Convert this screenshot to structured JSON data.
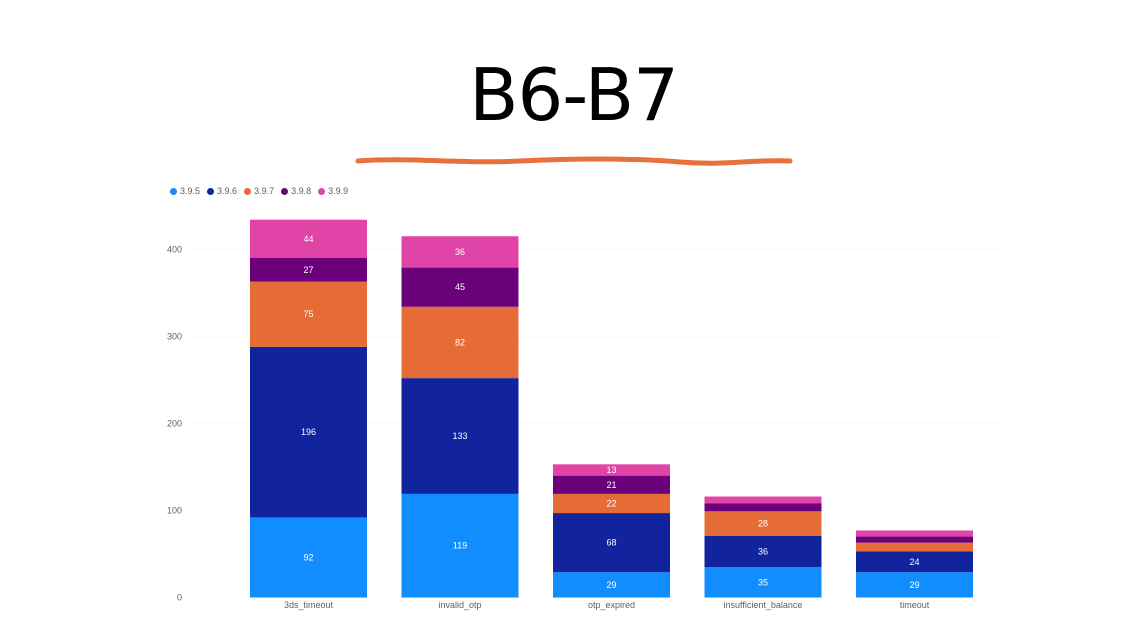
{
  "slide": {
    "title": "B6-B7"
  },
  "colors": {
    "underline": "#e8703a"
  },
  "chart_data": {
    "type": "bar",
    "stacked": true,
    "title": "",
    "xlabel": "",
    "ylabel": "",
    "categories": [
      "3ds_timeout",
      "invalid_otp",
      "otp_expired",
      "insufficient_balance",
      "timeout"
    ],
    "series": [
      {
        "name": "3.9.5",
        "color": "#118dff",
        "values": [
          92,
          119,
          29,
          35,
          29
        ]
      },
      {
        "name": "3.9.6",
        "color": "#12239e",
        "values": [
          196,
          133,
          68,
          36,
          24
        ]
      },
      {
        "name": "3.9.7",
        "color": "#e66c37",
        "values": [
          75,
          82,
          22,
          28,
          10
        ]
      },
      {
        "name": "3.9.8",
        "color": "#6b007b",
        "values": [
          27,
          45,
          21,
          9,
          7
        ]
      },
      {
        "name": "3.9.9",
        "color": "#e044a7",
        "values": [
          44,
          36,
          13,
          8,
          7
        ]
      }
    ],
    "data_labels": [
      [
        "92",
        "119",
        "29",
        "35",
        "29"
      ],
      [
        "196",
        "133",
        "68",
        "36",
        "24"
      ],
      [
        "75",
        "82",
        "22",
        "28",
        ""
      ],
      [
        "27",
        "45",
        "21",
        "",
        ""
      ],
      [
        "44",
        "36",
        "13",
        "",
        ""
      ]
    ],
    "yticks": [
      0,
      100,
      200,
      300,
      400
    ],
    "ylim": [
      0,
      435
    ],
    "grid": true,
    "legend_position": "top-left"
  }
}
